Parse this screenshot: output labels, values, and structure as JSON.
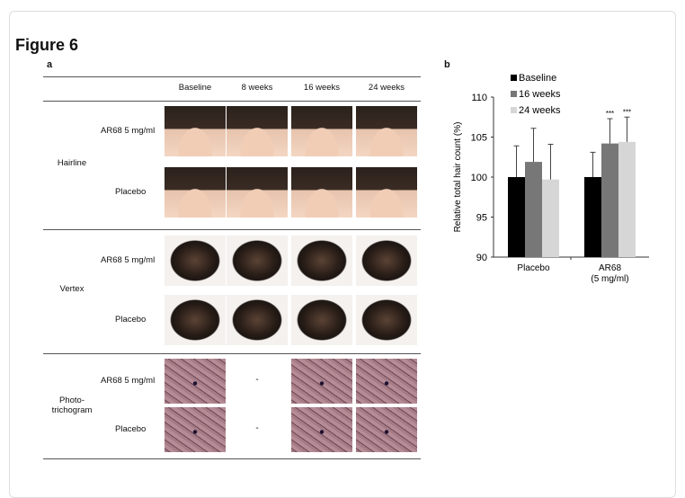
{
  "figure_title": "Figure 6",
  "panel_a": {
    "label": "a",
    "columns": [
      "Baseline",
      "8 weeks",
      "16 weeks",
      "24 weeks"
    ],
    "groups": [
      {
        "name": "Hairline",
        "rows": [
          "AR68 5 mg/ml",
          "Placebo"
        ],
        "image_type": "head"
      },
      {
        "name": "Vertex",
        "rows": [
          "AR68 5 mg/ml",
          "Placebo"
        ],
        "image_type": "vertex"
      },
      {
        "name": "Photo-\ntrichogram",
        "rows": [
          "AR68 5 mg/ml",
          "Placebo"
        ],
        "image_type": "tricho",
        "missing_column_text": "-"
      }
    ]
  },
  "panel_b": {
    "label": "b"
  },
  "chart_data": {
    "type": "bar",
    "categories": [
      "Placebo",
      "AR68\n(5 mg/ml)"
    ],
    "series": [
      {
        "name": "Baseline",
        "values": [
          100,
          100
        ],
        "error": [
          3.9,
          3.1
        ],
        "color": "#000000"
      },
      {
        "name": "16 weeks",
        "values": [
          101.9,
          104.2
        ],
        "error": [
          4.2,
          3.1
        ],
        "color": "#777777"
      },
      {
        "name": "24 weeks",
        "values": [
          99.7,
          104.4
        ],
        "error": [
          4.4,
          3.1
        ],
        "color": "#d6d6d6"
      }
    ],
    "annotations": [
      {
        "category": "AR68\n(5 mg/ml)",
        "series": "16 weeks",
        "text": "***"
      },
      {
        "category": "AR68\n(5 mg/ml)",
        "series": "24 weeks",
        "text": "***"
      }
    ],
    "ylabel": "Relative total hair count (%)",
    "ylim": [
      90,
      110
    ],
    "yticks": [
      90,
      95,
      100,
      105,
      110
    ],
    "legend": "top-left",
    "grid": false
  }
}
